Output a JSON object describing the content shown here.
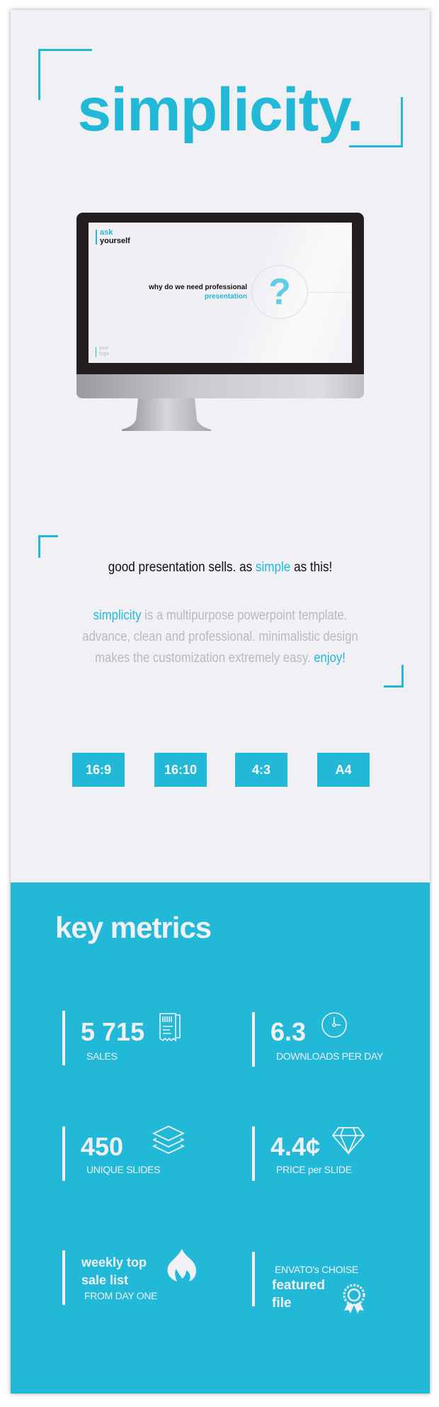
{
  "title": "simplicity.",
  "slide": {
    "ask": "ask",
    "yourself": "yourself",
    "question": "why do we need professional",
    "highlight": "presentation",
    "mark": "?",
    "logo1": "your",
    "logo2": "logo"
  },
  "intro": {
    "heading_a": "good presentation sells. as ",
    "heading_b": "simple",
    "heading_c": " as this!",
    "p1_a": "simplicity",
    "p1_b": " is a multipurpose powerpoint template.",
    "p2": "advance, clean and professional. minimalistic design",
    "p3_a": "makes the customization extremely easy. ",
    "p3_b": "enjoy!"
  },
  "formats": [
    "16:9",
    "16:10",
    "4:3",
    "A4"
  ],
  "metrics": {
    "title": "key metrics",
    "sales": {
      "value": "5 715",
      "label": "SALES",
      "icon": "receipt-icon"
    },
    "downloads": {
      "value": "6.3",
      "label": "DOWNLOADS PER DAY",
      "icon": "clock-icon"
    },
    "slides": {
      "value": "450",
      "label": "UNIQUE SLIDES",
      "icon": "layers-icon"
    },
    "price": {
      "value": "4.4¢",
      "label": "PRICE per SLIDE",
      "icon": "diamond-icon"
    },
    "weekly": {
      "line1": "weekly top",
      "line2": "sale list",
      "label": "FROM DAY ONE",
      "icon": "fire-icon"
    },
    "featured": {
      "label": "ENVATO's CHOISE",
      "line1": "featured",
      "line2": "file",
      "icon": "award-ribbon-icon"
    }
  },
  "colors": {
    "accent": "#21b9d7",
    "background": "#f1f1f5"
  }
}
